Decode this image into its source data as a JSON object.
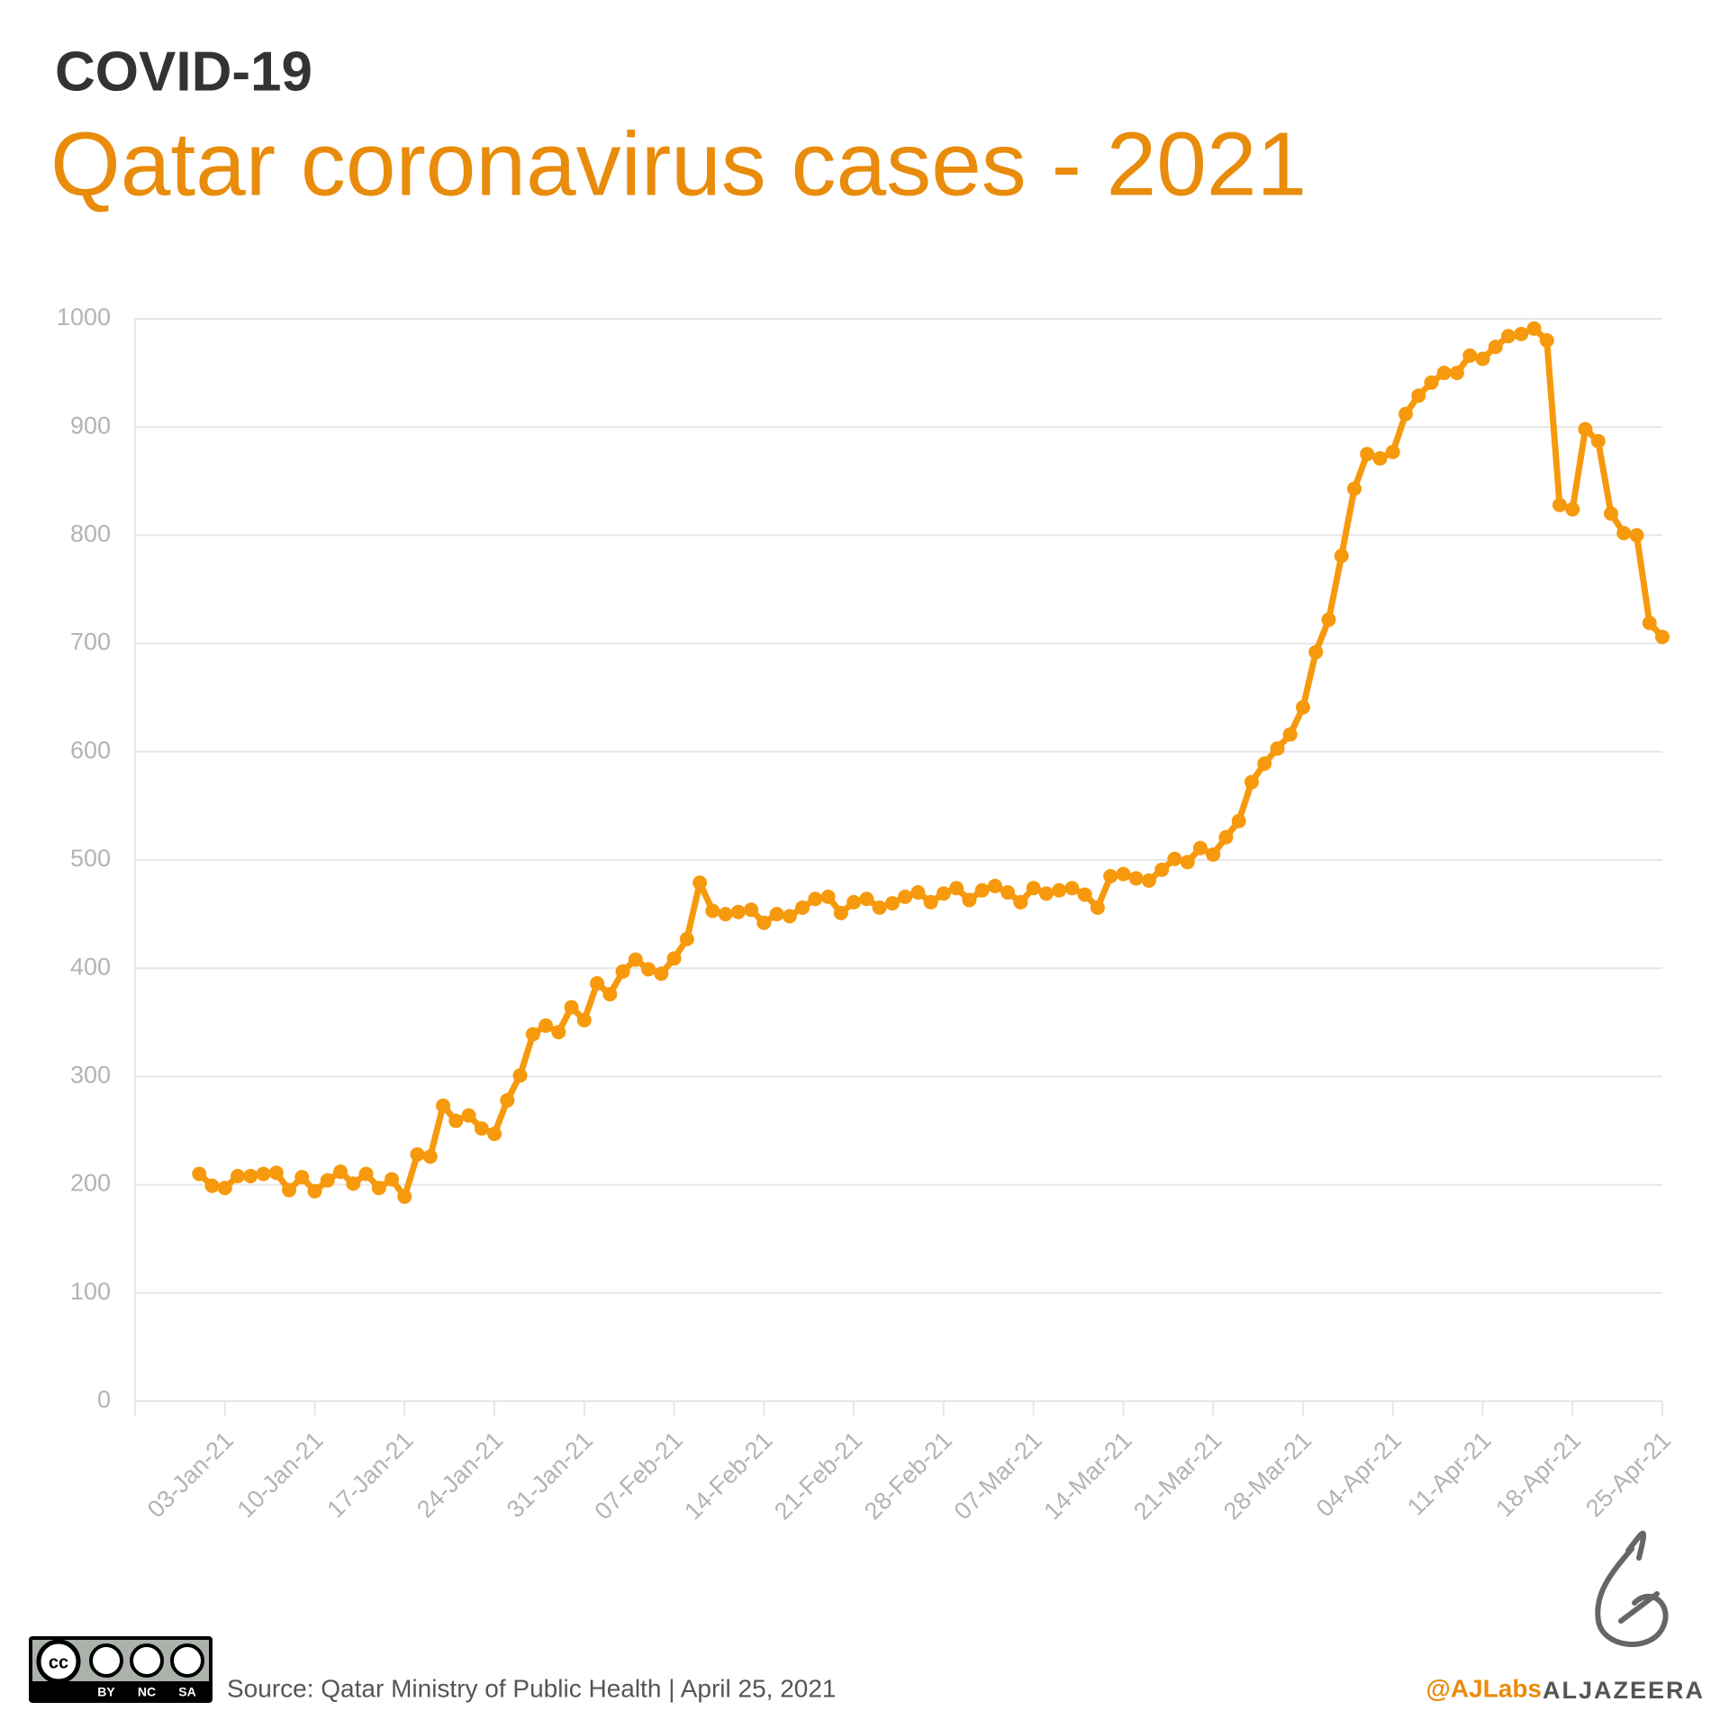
{
  "header": {
    "kicker": "COVID-19",
    "title": "Qatar coronavirus cases - 2021"
  },
  "chart_data": {
    "type": "line",
    "color": "#f7990c",
    "grid": true,
    "markers": true,
    "xlim": [
      "2020-12-27",
      "2021-04-25"
    ],
    "xticks": [
      {
        "value": "2021-01-03",
        "label": "03-Jan-21"
      },
      {
        "value": "2021-01-10",
        "label": "10-Jan-21"
      },
      {
        "value": "2021-01-17",
        "label": "17-Jan-21"
      },
      {
        "value": "2021-01-24",
        "label": "24-Jan-21"
      },
      {
        "value": "2021-01-31",
        "label": "31-Jan-21"
      },
      {
        "value": "2021-02-07",
        "label": "07-Feb-21"
      },
      {
        "value": "2021-02-14",
        "label": "14-Feb-21"
      },
      {
        "value": "2021-02-21",
        "label": "21-Feb-21"
      },
      {
        "value": "2021-02-28",
        "label": "28-Feb-21"
      },
      {
        "value": "2021-03-07",
        "label": "07-Mar-21"
      },
      {
        "value": "2021-03-14",
        "label": "14-Mar-21"
      },
      {
        "value": "2021-03-21",
        "label": "21-Mar-21"
      },
      {
        "value": "2021-03-28",
        "label": "28-Mar-21"
      },
      {
        "value": "2021-04-04",
        "label": "04-Apr-21"
      },
      {
        "value": "2021-04-11",
        "label": "11-Apr-21"
      },
      {
        "value": "2021-04-18",
        "label": "18-Apr-21"
      },
      {
        "value": "2021-04-25",
        "label": "25-Apr-21"
      }
    ],
    "ylim": [
      0,
      1000
    ],
    "yticks": [
      0,
      100,
      200,
      300,
      400,
      500,
      600,
      700,
      800,
      900,
      1000
    ],
    "x": [
      "2021-01-01",
      "2021-01-02",
      "2021-01-03",
      "2021-01-04",
      "2021-01-05",
      "2021-01-06",
      "2021-01-07",
      "2021-01-08",
      "2021-01-09",
      "2021-01-10",
      "2021-01-11",
      "2021-01-12",
      "2021-01-13",
      "2021-01-14",
      "2021-01-15",
      "2021-01-16",
      "2021-01-17",
      "2021-01-18",
      "2021-01-19",
      "2021-01-20",
      "2021-01-21",
      "2021-01-22",
      "2021-01-23",
      "2021-01-24",
      "2021-01-25",
      "2021-01-26",
      "2021-01-27",
      "2021-01-28",
      "2021-01-29",
      "2021-01-30",
      "2021-01-31",
      "2021-02-01",
      "2021-02-02",
      "2021-02-03",
      "2021-02-04",
      "2021-02-05",
      "2021-02-06",
      "2021-02-07",
      "2021-02-08",
      "2021-02-09",
      "2021-02-10",
      "2021-02-11",
      "2021-02-12",
      "2021-02-13",
      "2021-02-14",
      "2021-02-15",
      "2021-02-16",
      "2021-02-17",
      "2021-02-18",
      "2021-02-19",
      "2021-02-20",
      "2021-02-21",
      "2021-02-22",
      "2021-02-23",
      "2021-02-24",
      "2021-02-25",
      "2021-02-26",
      "2021-02-27",
      "2021-02-28",
      "2021-03-01",
      "2021-03-02",
      "2021-03-03",
      "2021-03-04",
      "2021-03-05",
      "2021-03-06",
      "2021-03-07",
      "2021-03-08",
      "2021-03-09",
      "2021-03-10",
      "2021-03-11",
      "2021-03-12",
      "2021-03-13",
      "2021-03-14",
      "2021-03-15",
      "2021-03-16",
      "2021-03-17",
      "2021-03-18",
      "2021-03-19",
      "2021-03-20",
      "2021-03-21",
      "2021-03-22",
      "2021-03-23",
      "2021-03-24",
      "2021-03-25",
      "2021-03-26",
      "2021-03-27",
      "2021-03-28",
      "2021-03-29",
      "2021-03-30",
      "2021-03-31",
      "2021-04-01",
      "2021-04-02",
      "2021-04-03",
      "2021-04-04",
      "2021-04-05",
      "2021-04-06",
      "2021-04-07",
      "2021-04-08",
      "2021-04-09",
      "2021-04-10",
      "2021-04-11",
      "2021-04-12",
      "2021-04-13",
      "2021-04-14",
      "2021-04-15",
      "2021-04-16",
      "2021-04-17",
      "2021-04-18",
      "2021-04-19",
      "2021-04-20",
      "2021-04-21",
      "2021-04-22",
      "2021-04-23",
      "2021-04-24",
      "2021-04-25"
    ],
    "values": [
      210,
      199,
      197,
      208,
      208,
      210,
      211,
      195,
      207,
      194,
      204,
      212,
      201,
      210,
      197,
      205,
      189,
      228,
      226,
      273,
      259,
      264,
      252,
      247,
      278,
      301,
      339,
      347,
      341,
      364,
      352,
      386,
      376,
      397,
      408,
      399,
      395,
      409,
      427,
      479,
      453,
      450,
      452,
      454,
      442,
      450,
      448,
      456,
      464,
      466,
      451,
      461,
      464,
      456,
      460,
      466,
      470,
      461,
      469,
      474,
      463,
      472,
      476,
      470,
      461,
      474,
      469,
      472,
      474,
      468,
      456,
      485,
      487,
      483,
      481,
      491,
      501,
      498,
      511,
      505,
      521,
      536,
      572,
      589,
      603,
      616,
      641,
      692,
      722,
      781,
      843,
      875,
      871,
      877,
      912,
      929,
      941,
      950,
      950,
      966,
      963,
      974,
      984,
      986,
      991,
      980,
      828,
      824,
      898,
      887,
      820,
      802,
      800,
      719,
      706
    ]
  },
  "footer": {
    "source": "Source: Qatar Ministry of Public Health | April 25, 2021",
    "handle": "@AJLabs",
    "brand": "ALJAZEERA",
    "license": {
      "cc": "cc",
      "terms": [
        "BY",
        "NC",
        "SA"
      ]
    }
  }
}
